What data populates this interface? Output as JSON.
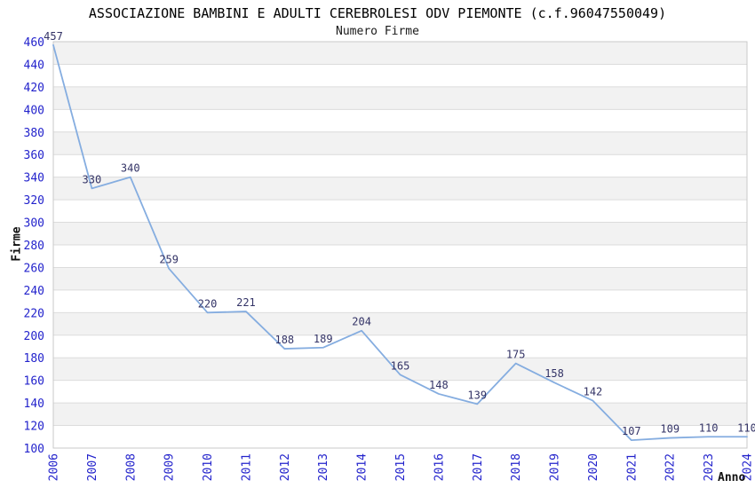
{
  "title": "ASSOCIAZIONE BAMBINI E ADULTI CEREBROLESI ODV PIEMONTE (c.f.96047550049)",
  "subtitle": "Numero Firme",
  "axes": {
    "x_label": "Anno",
    "y_label": "Firme"
  },
  "colors": {
    "line": "#85ade0",
    "tick_label": "#2323cc",
    "data_label": "#333366",
    "band": "#f2f2f2",
    "grid": "#dcdcdc",
    "plot_border": "#c9c9c9",
    "background": "#ffffff",
    "text": "#000000"
  },
  "chart_data": {
    "type": "line",
    "title": "ASSOCIAZIONE BAMBINI E ADULTI CEREBROLESI ODV PIEMONTE (c.f.96047550049)",
    "subtitle": "Numero Firme",
    "xlabel": "Anno",
    "ylabel": "Firme",
    "x": [
      2006,
      2007,
      2008,
      2009,
      2010,
      2011,
      2012,
      2013,
      2014,
      2015,
      2016,
      2017,
      2018,
      2019,
      2020,
      2021,
      2022,
      2023,
      2024
    ],
    "series": [
      {
        "name": "Numero Firme",
        "values": [
          457,
          330,
          340,
          259,
          220,
          221,
          188,
          189,
          204,
          165,
          148,
          139,
          175,
          158,
          142,
          107,
          109,
          110,
          110
        ]
      }
    ],
    "ylim": [
      100,
      460
    ],
    "ytick_step": 20,
    "grid": true,
    "vertical_grid": false,
    "alternating_bands": true,
    "legend": false,
    "point_labels": true,
    "x_tick_rotation": -90
  }
}
